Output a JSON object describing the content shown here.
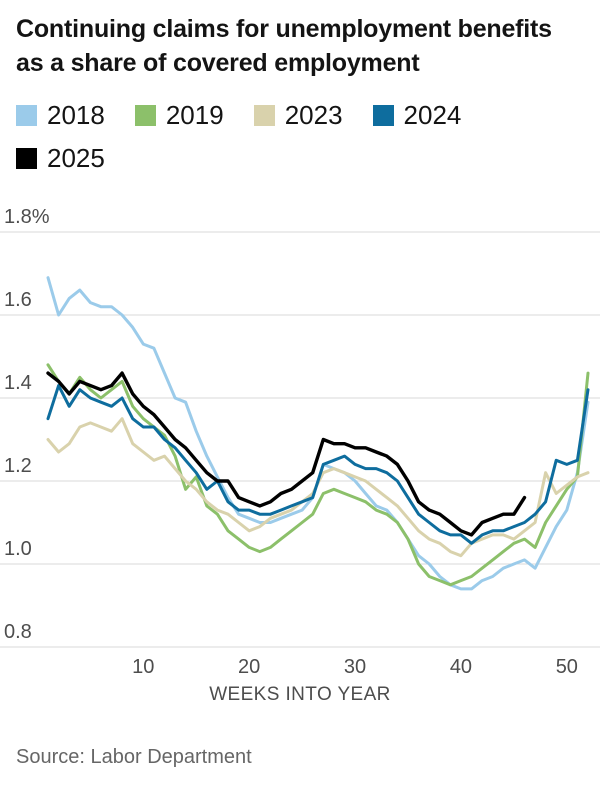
{
  "source_note": "Source: Labor Department",
  "chart_data": {
    "type": "line",
    "title": "Continuing claims for unemployment benefits as a share of covered employment",
    "xlabel": "WEEKS INTO YEAR",
    "ylabel": "",
    "xlim": [
      1,
      52
    ],
    "ylim": [
      0.8,
      1.8
    ],
    "grid": "horizontal",
    "gridline_color": "#d9d9d9",
    "legend_position": "top",
    "yticks": [
      0.8,
      1.0,
      1.2,
      1.4,
      1.6,
      1.8
    ],
    "ytick_labels": [
      "0.8",
      "1.0",
      "1.2",
      "1.4",
      "1.6",
      "1.8%"
    ],
    "xticks": [
      10,
      20,
      30,
      40,
      50
    ],
    "series": [
      {
        "name": "2018",
        "color": "#9bcbea",
        "stroke_width": 3,
        "values": [
          1.69,
          1.6,
          1.64,
          1.66,
          1.63,
          1.62,
          1.62,
          1.6,
          1.57,
          1.53,
          1.52,
          1.46,
          1.4,
          1.39,
          1.32,
          1.26,
          1.21,
          1.16,
          1.12,
          1.11,
          1.1,
          1.1,
          1.11,
          1.12,
          1.13,
          1.16,
          1.24,
          1.23,
          1.22,
          1.2,
          1.17,
          1.14,
          1.13,
          1.1,
          1.06,
          1.02,
          1.0,
          0.97,
          0.95,
          0.94,
          0.94,
          0.96,
          0.97,
          0.99,
          1.0,
          1.01,
          0.99,
          1.04,
          1.09,
          1.13,
          1.22,
          1.39
        ]
      },
      {
        "name": "2019",
        "color": "#8cc06a",
        "stroke_width": 3,
        "values": [
          1.48,
          1.44,
          1.41,
          1.45,
          1.42,
          1.4,
          1.42,
          1.44,
          1.38,
          1.35,
          1.33,
          1.31,
          1.26,
          1.18,
          1.21,
          1.14,
          1.12,
          1.08,
          1.06,
          1.04,
          1.03,
          1.04,
          1.06,
          1.08,
          1.1,
          1.12,
          1.17,
          1.18,
          1.17,
          1.16,
          1.15,
          1.13,
          1.12,
          1.1,
          1.06,
          1.0,
          0.97,
          0.96,
          0.95,
          0.96,
          0.97,
          0.99,
          1.01,
          1.03,
          1.05,
          1.06,
          1.04,
          1.1,
          1.14,
          1.18,
          1.21,
          1.46
        ]
      },
      {
        "name": "2023",
        "color": "#d9d2ac",
        "stroke_width": 3,
        "values": [
          1.3,
          1.27,
          1.29,
          1.33,
          1.34,
          1.33,
          1.32,
          1.35,
          1.29,
          1.27,
          1.25,
          1.26,
          1.23,
          1.2,
          1.18,
          1.15,
          1.13,
          1.12,
          1.1,
          1.08,
          1.09,
          1.11,
          1.12,
          1.13,
          1.15,
          1.17,
          1.22,
          1.23,
          1.22,
          1.21,
          1.2,
          1.18,
          1.16,
          1.14,
          1.11,
          1.08,
          1.06,
          1.05,
          1.03,
          1.02,
          1.05,
          1.06,
          1.07,
          1.07,
          1.06,
          1.08,
          1.1,
          1.22,
          1.17,
          1.19,
          1.21,
          1.22
        ]
      },
      {
        "name": "2024",
        "color": "#0e6d9e",
        "stroke_width": 3,
        "values": [
          1.35,
          1.43,
          1.38,
          1.42,
          1.4,
          1.39,
          1.38,
          1.4,
          1.35,
          1.33,
          1.33,
          1.3,
          1.28,
          1.25,
          1.22,
          1.18,
          1.2,
          1.15,
          1.13,
          1.13,
          1.12,
          1.12,
          1.13,
          1.14,
          1.15,
          1.16,
          1.24,
          1.25,
          1.26,
          1.24,
          1.23,
          1.23,
          1.22,
          1.2,
          1.16,
          1.12,
          1.1,
          1.08,
          1.07,
          1.07,
          1.05,
          1.07,
          1.08,
          1.08,
          1.09,
          1.1,
          1.12,
          1.15,
          1.25,
          1.24,
          1.25,
          1.42
        ]
      },
      {
        "name": "2025",
        "color": "#000000",
        "stroke_width": 3.4,
        "values": [
          1.46,
          1.44,
          1.41,
          1.44,
          1.43,
          1.42,
          1.43,
          1.46,
          1.41,
          1.38,
          1.36,
          1.33,
          1.3,
          1.28,
          1.25,
          1.22,
          1.2,
          1.2,
          1.16,
          1.15,
          1.14,
          1.15,
          1.17,
          1.18,
          1.2,
          1.22,
          1.3,
          1.29,
          1.29,
          1.28,
          1.28,
          1.27,
          1.26,
          1.24,
          1.2,
          1.15,
          1.13,
          1.12,
          1.1,
          1.08,
          1.07,
          1.1,
          1.11,
          1.12,
          1.12,
          1.16
        ]
      }
    ]
  }
}
